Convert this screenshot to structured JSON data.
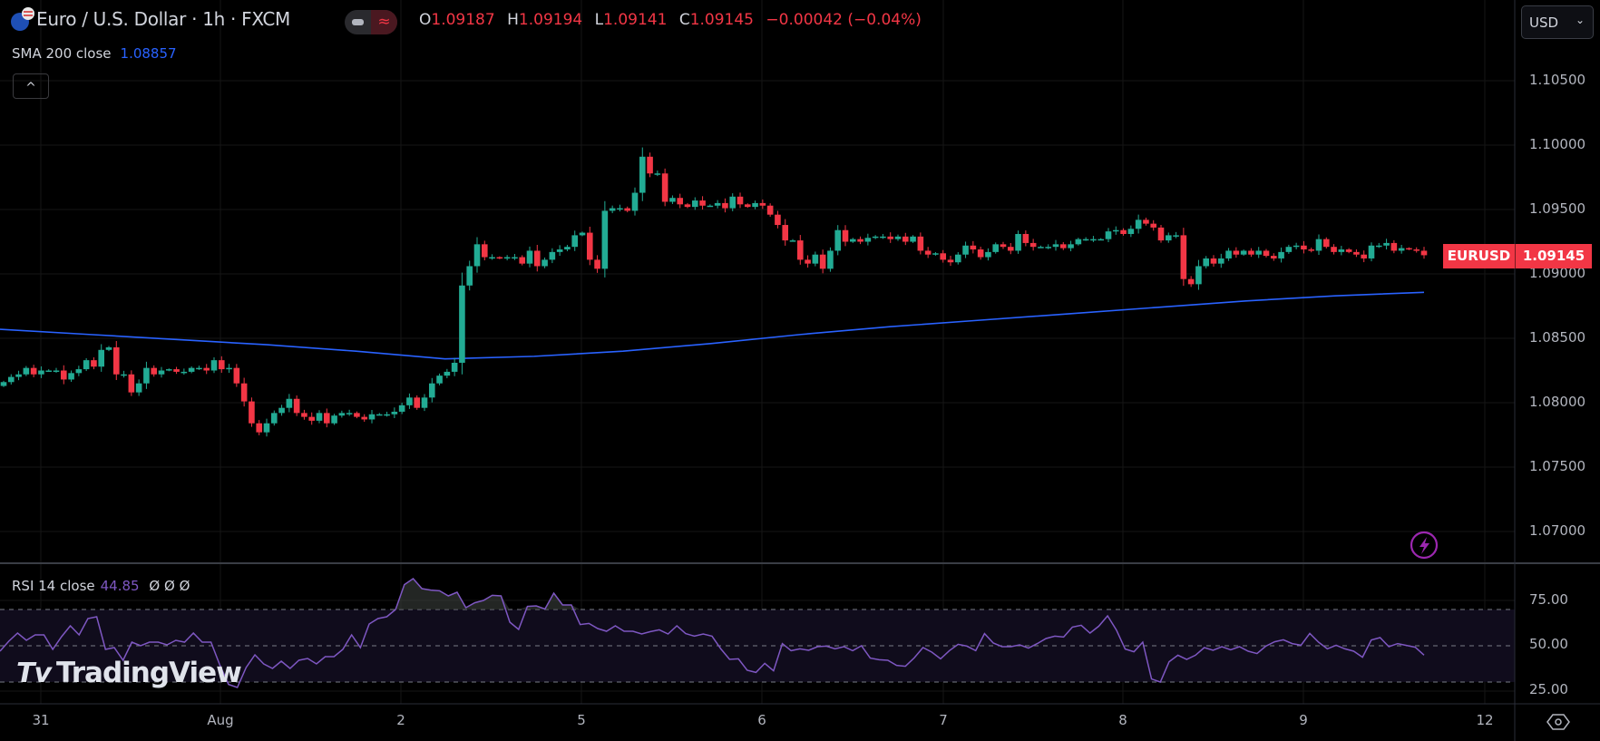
{
  "header": {
    "title": "Euro / U.S. Dollar · 1h · FXCM",
    "ohlc": {
      "o_label": "O",
      "o": "1.09187",
      "h_label": "H",
      "h": "1.09194",
      "l_label": "L",
      "l": "1.09141",
      "c_label": "C",
      "c": "1.09145",
      "change": "−0.00042 (−0.04%)"
    },
    "pill_icon_right": "≈",
    "collapse_icon": "^"
  },
  "indicators": {
    "sma": {
      "label": "SMA 200 close",
      "value": "1.08857"
    },
    "rsi": {
      "label": "RSI 14 close",
      "value": "44.85",
      "extra": [
        "Ø",
        "Ø",
        "Ø"
      ]
    }
  },
  "currency_button": {
    "label": "USD",
    "chevron": "⌄"
  },
  "price_tag": {
    "symbol": "EURUSD",
    "price": "1.09145"
  },
  "price_axis": [
    "1.10500",
    "1.10000",
    "1.09500",
    "1.09000",
    "1.08500",
    "1.08000",
    "1.07500",
    "1.07000"
  ],
  "rsi_axis": [
    "75.00",
    "50.00",
    "25.00"
  ],
  "time_axis": [
    "31",
    "Aug",
    "2",
    "5",
    "6",
    "7",
    "8",
    "9",
    "12"
  ],
  "watermark": "TradingView",
  "colors": {
    "up": "#22ab94",
    "down": "#f23645",
    "sma": "#2962ff",
    "rsi": "#7e57c2",
    "background": "#000000",
    "rsi_band": "#100c1c"
  },
  "chart_data": [
    {
      "type": "candlestick",
      "interval": "1h",
      "symbol": "EURUSD",
      "ylim": [
        1.0675,
        1.1075
      ],
      "grid": true,
      "close": [
        1.0816,
        1.082,
        1.0822,
        1.0827,
        1.0822,
        1.0825,
        1.0825,
        1.0825,
        1.0818,
        1.0823,
        1.0826,
        1.0833,
        1.0828,
        1.0841,
        1.0843,
        1.0822,
        1.0822,
        1.0808,
        1.0815,
        1.0827,
        1.0822,
        1.0825,
        1.0826,
        1.0824,
        1.0824,
        1.0827,
        1.0827,
        1.0825,
        1.0833,
        1.0826,
        1.0827,
        1.0815,
        1.0801,
        1.0784,
        1.0777,
        1.0784,
        1.0792,
        1.0796,
        1.0803,
        1.0792,
        1.0789,
        1.0786,
        1.0792,
        1.0784,
        1.079,
        1.0792,
        1.0792,
        1.0789,
        1.0787,
        1.0791,
        1.0791,
        1.0791,
        1.0793,
        1.0798,
        1.0804,
        1.0796,
        1.0804,
        1.0815,
        1.0821,
        1.0824,
        1.0831,
        1.0891,
        1.0906,
        1.0923,
        1.0913,
        1.0913,
        1.0912,
        1.0913,
        1.0913,
        1.0908,
        1.0918,
        1.0906,
        1.0911,
        1.0917,
        1.0919,
        1.0921,
        1.093,
        1.0932,
        1.0911,
        1.0904,
        1.0949,
        1.0951,
        1.0951,
        1.0949,
        1.0963,
        1.0991,
        1.0978,
        1.0978,
        1.0956,
        1.0959,
        1.0954,
        1.0952,
        1.0957,
        1.0953,
        1.0953,
        1.0955,
        1.0951,
        1.096,
        1.0954,
        1.0952,
        1.0955,
        1.0953,
        1.0946,
        1.0938,
        1.0926,
        1.0926,
        1.0911,
        1.0908,
        1.0915,
        1.0904,
        1.0918,
        1.0934,
        1.0925,
        1.0927,
        1.0925,
        1.0928,
        1.0929,
        1.0929,
        1.0927,
        1.0929,
        1.0925,
        1.0929,
        1.0918,
        1.0915,
        1.0916,
        1.0911,
        1.0909,
        1.0915,
        1.0922,
        1.0919,
        1.0913,
        1.0917,
        1.0923,
        1.0921,
        1.0918,
        1.0931,
        1.0924,
        1.0921,
        1.0921,
        1.0921,
        1.0923,
        1.092,
        1.0923,
        1.0927,
        1.0927,
        1.0927,
        1.0927,
        1.0933,
        1.0934,
        1.0931,
        1.0935,
        1.0942,
        1.0939,
        1.0936,
        1.0926,
        1.093,
        1.093,
        1.0896,
        1.0892,
        1.0906,
        1.0912,
        1.0908,
        1.0912,
        1.0918,
        1.0915,
        1.0918,
        1.0915,
        1.0918,
        1.0914,
        1.0912,
        1.0917,
        1.0921,
        1.0922,
        1.0919,
        1.0918,
        1.0927,
        1.0921,
        1.0917,
        1.0919,
        1.0917,
        1.0915,
        1.0912,
        1.0922,
        1.0922,
        1.0924,
        1.0918,
        1.092,
        1.0919,
        1.0918,
        1.09145
      ],
      "sma_200": [
        1.0857,
        1.0853,
        1.0849,
        1.0845,
        1.084,
        1.0834,
        1.0836,
        1.084,
        1.0846,
        1.0853,
        1.0859,
        1.0864,
        1.0869,
        1.0874,
        1.0879,
        1.0883,
        1.08857
      ]
    },
    {
      "type": "line",
      "series": "RSI 14 close",
      "ylim": [
        15,
        95
      ],
      "bands": [
        30,
        50,
        70
      ],
      "values": [
        47,
        52.5,
        57,
        53,
        56,
        56,
        48,
        55,
        61,
        56,
        65,
        66,
        48,
        49,
        42,
        52,
        50,
        52,
        52,
        50.5,
        53,
        52,
        57,
        52,
        52,
        39.5,
        28.7,
        27,
        38,
        45,
        40,
        37.5,
        41.5,
        37.5,
        42,
        43,
        40,
        44,
        44,
        48,
        56,
        49,
        62,
        65,
        66,
        70,
        83.7,
        87,
        81.5,
        80.7,
        80.3,
        77.5,
        79.5,
        71,
        73.7,
        75,
        77.8,
        77.5,
        63,
        59,
        71.7,
        72,
        70.3,
        79,
        72.5,
        72.5,
        61.7,
        62.3,
        59.5,
        58,
        61,
        58,
        58,
        56.5,
        57.8,
        58.8,
        56.5,
        61,
        56.7,
        55.3,
        56.5,
        55.3,
        48.3,
        42.5,
        42.8,
        36.5,
        35.3,
        40.3,
        36.2,
        51.2,
        47.3,
        48.3,
        47.5,
        49.5,
        49.8,
        48.3,
        49.5,
        47.3,
        50,
        43.2,
        42.3,
        42,
        39.2,
        38.7,
        43.3,
        49,
        46.5,
        42.8,
        47.3,
        50.8,
        49.8,
        47.3,
        56.7,
        51.5,
        49.5,
        49.5,
        50.5,
        48.7,
        51.2,
        54,
        55.3,
        54.8,
        60.3,
        61.3,
        57,
        60.8,
        66.5,
        58.7,
        48.2,
        46.7,
        52,
        31.7,
        30,
        41.2,
        44.8,
        42.5,
        44.8,
        49,
        47.5,
        49.5,
        47.8,
        49.5,
        47,
        45.7,
        49.8,
        52.2,
        53.3,
        51.2,
        50.3,
        56.8,
        52,
        48.3,
        50.3,
        48.3,
        47,
        43.7,
        53.2,
        54.5,
        49.5,
        51.2,
        50.2,
        49.2,
        44.85
      ]
    }
  ]
}
